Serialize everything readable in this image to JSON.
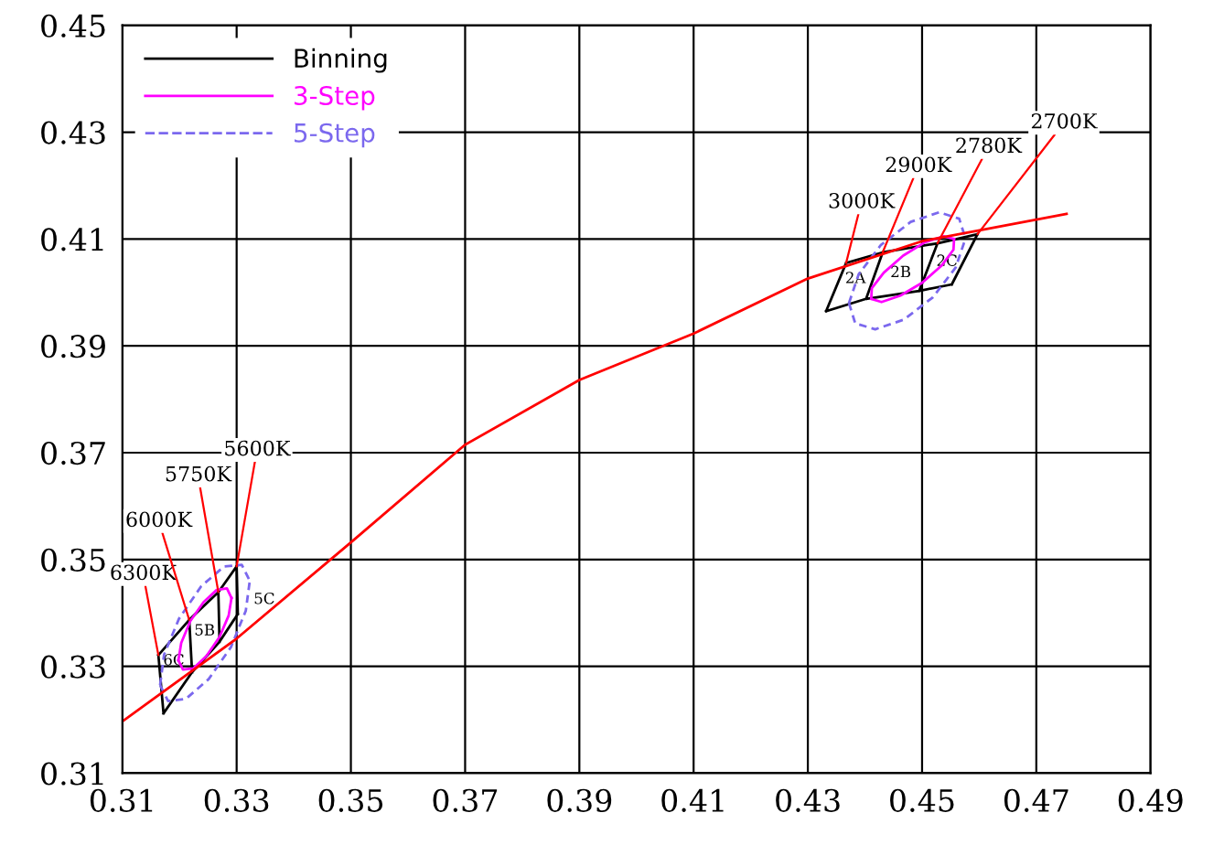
{
  "chart_data": {
    "type": "line",
    "xlim": [
      0.31,
      0.49
    ],
    "ylim": [
      0.31,
      0.45
    ],
    "xticks": [
      0.31,
      0.33,
      0.35,
      0.37,
      0.39,
      0.41,
      0.43,
      0.45,
      0.47,
      0.49
    ],
    "yticks": [
      0.31,
      0.33,
      0.35,
      0.37,
      0.39,
      0.41,
      0.43,
      0.45
    ],
    "grid": true,
    "legend": "top left",
    "marker": "none",
    "series": [
      {
        "name": "Binning",
        "color": "#000000",
        "line_style": "solid",
        "x": [
          0.3163,
          0.3217,
          0.3268,
          0.33,
          null,
          0.3172,
          0.3222,
          0.327,
          0.3302,
          null,
          0.3163,
          0.3172,
          null,
          0.3217,
          0.3222,
          null,
          0.3268,
          0.327,
          null,
          0.33,
          0.3302,
          null,
          0.4367,
          0.4431,
          0.4527,
          0.4597,
          null,
          0.4332,
          0.4402,
          0.4495,
          0.4552,
          null,
          0.4367,
          0.4332,
          null,
          0.4431,
          0.4402,
          null,
          0.4527,
          0.4495,
          null,
          0.4597,
          0.4552
        ],
        "values": [
          0.3321,
          0.3387,
          0.3439,
          0.3487,
          null,
          0.3212,
          0.3289,
          0.3346,
          0.3398,
          null,
          0.3321,
          0.3212,
          null,
          0.3387,
          0.3289,
          null,
          0.3439,
          0.3346,
          null,
          0.3487,
          0.3398,
          null,
          0.4055,
          0.4075,
          0.4092,
          0.4109,
          null,
          0.3965,
          0.3988,
          0.4003,
          0.4015,
          null,
          0.4055,
          0.3965,
          null,
          0.4075,
          0.3988,
          null,
          0.4092,
          0.4003,
          null,
          0.4109,
          0.4015
        ]
      },
      {
        "name": "3-Step",
        "color": "#ff00ff",
        "line_style": "solid",
        "x": [
          0.3198,
          0.3203,
          0.3219,
          0.3242,
          0.3265,
          0.3283,
          0.3291
        ],
        "values": [
          0.3311,
          0.3344,
          0.3385,
          0.342,
          0.3443,
          0.3446,
          0.3428
        ]
      },
      {
        "color": "#ff00ff",
        "line_style": "solid",
        "x": [
          0.3198,
          0.3206,
          0.3224,
          0.3247,
          0.327,
          0.3286,
          0.3291
        ],
        "values": [
          0.3311,
          0.3294,
          0.3296,
          0.3319,
          0.3355,
          0.3395,
          0.3428
        ]
      },
      {
        "color": "#ff00ff",
        "line_style": "solid",
        "x": [
          0.4411,
          0.4412,
          0.4433,
          0.4467,
          0.4505,
          0.4538,
          0.4556
        ],
        "values": [
          0.3988,
          0.4008,
          0.4037,
          0.4069,
          0.4094,
          0.4105,
          0.41
        ]
      },
      {
        "color": "#ff00ff",
        "line_style": "solid",
        "x": [
          0.4411,
          0.4429,
          0.4462,
          0.45,
          0.4534,
          0.4555,
          0.4556
        ],
        "values": [
          0.3988,
          0.3982,
          0.3994,
          0.4018,
          0.405,
          0.408,
          0.41
        ]
      },
      {
        "name": "5-Step",
        "color": "#7b68ee",
        "line_style": "dashed",
        "x": [
          0.3166,
          0.3173,
          0.3199,
          0.3238,
          0.3278,
          0.3309,
          0.3323
        ],
        "values": [
          0.3265,
          0.3322,
          0.3389,
          0.345,
          0.3487,
          0.349,
          0.346
        ]
      },
      {
        "color": "#7b68ee",
        "line_style": "dashed",
        "x": [
          0.3166,
          0.318,
          0.3211,
          0.3251,
          0.329,
          0.3316,
          0.3323
        ],
        "values": [
          0.3265,
          0.3235,
          0.3239,
          0.3276,
          0.3336,
          0.3404,
          0.346
        ]
      },
      {
        "color": "#7b68ee",
        "line_style": "dashed",
        "x": [
          0.4372,
          0.4389,
          0.4428,
          0.448,
          0.453,
          0.4565,
          0.4576
        ],
        "values": [
          0.398,
          0.4034,
          0.4089,
          0.4132,
          0.415,
          0.4138,
          0.4101
        ]
      },
      {
        "color": "#7b68ee",
        "line_style": "dashed",
        "x": [
          0.4372,
          0.4383,
          0.4418,
          0.4468,
          0.4519,
          0.4559,
          0.4576
        ],
        "values": [
          0.398,
          0.3942,
          0.3931,
          0.3949,
          0.3991,
          0.4047,
          0.4101
        ]
      },
      {
        "color": "#ff0000",
        "line_style": "solid",
        "x": [
          0.31,
          0.33,
          0.35,
          0.37,
          0.39,
          0.41,
          0.43,
          0.45,
          0.4753
        ],
        "values": [
          0.3197,
          0.3352,
          0.3532,
          0.3715,
          0.3836,
          0.3923,
          0.4026,
          0.4096,
          0.4147
        ]
      }
    ],
    "annotations": [
      {
        "text": "6300K",
        "x": 0.3163,
        "y": 0.3321
      },
      {
        "text": "6000K",
        "x": 0.3217,
        "y": 0.3387
      },
      {
        "text": "5750K",
        "x": 0.3268,
        "y": 0.3439
      },
      {
        "text": "5600K",
        "x": 0.33,
        "y": 0.3487
      },
      {
        "text": "3000K",
        "x": 0.4367,
        "y": 0.4055
      },
      {
        "text": "2900K",
        "x": 0.4431,
        "y": 0.4075
      },
      {
        "text": "2780K",
        "x": 0.4527,
        "y": 0.4092
      },
      {
        "text": "2700K",
        "x": 0.4597,
        "y": 0.4109
      },
      "6C",
      "5B",
      "5C",
      "2A",
      "2B",
      "2C"
    ]
  }
}
